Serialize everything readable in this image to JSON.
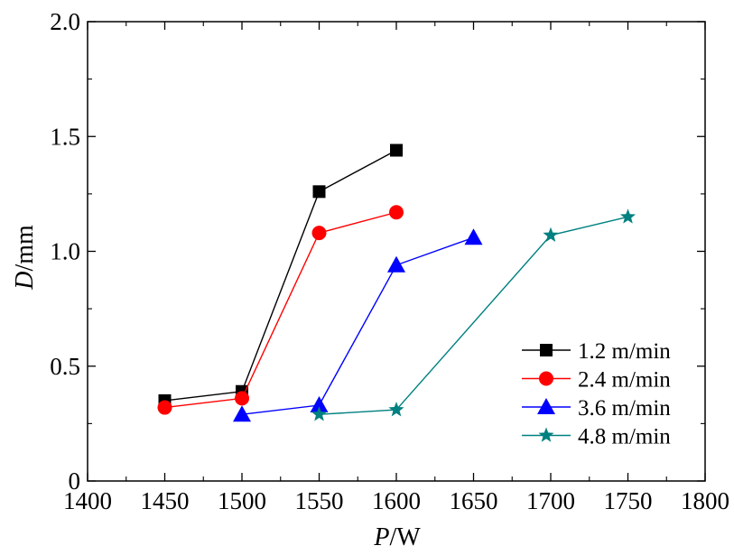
{
  "chart_data": {
    "type": "line",
    "title": "",
    "xlabel_var": "P",
    "xlabel_unit": "/W",
    "ylabel_var": "D",
    "ylabel_unit": "/mm",
    "xlim": [
      1400,
      1800
    ],
    "ylim": [
      0,
      2.0
    ],
    "xticks": [
      1400,
      1450,
      1500,
      1550,
      1600,
      1650,
      1700,
      1750,
      1800
    ],
    "yticks": [
      0,
      0.5,
      1.0,
      1.5,
      2.0
    ],
    "ytick_labels": [
      "0",
      "0.5",
      "1.0",
      "1.5",
      "2.0"
    ],
    "grid": false,
    "legend_position": "lower-right",
    "series": [
      {
        "name": "1.2 m/min",
        "color": "#000000",
        "marker": "square",
        "x": [
          1450,
          1500,
          1550,
          1600
        ],
        "y": [
          0.35,
          0.39,
          1.26,
          1.44
        ]
      },
      {
        "name": "2.4 m/min",
        "color": "#ff0000",
        "marker": "circle",
        "x": [
          1450,
          1500,
          1550,
          1600
        ],
        "y": [
          0.32,
          0.36,
          1.08,
          1.17
        ]
      },
      {
        "name": "3.6 m/min",
        "color": "#0000ff",
        "marker": "triangle",
        "x": [
          1500,
          1550,
          1600,
          1650
        ],
        "y": [
          0.29,
          0.33,
          0.94,
          1.06
        ]
      },
      {
        "name": "4.8 m/min",
        "color": "#008080",
        "marker": "star",
        "x": [
          1550,
          1600,
          1700,
          1750
        ],
        "y": [
          0.29,
          0.31,
          1.07,
          1.15
        ]
      }
    ]
  }
}
